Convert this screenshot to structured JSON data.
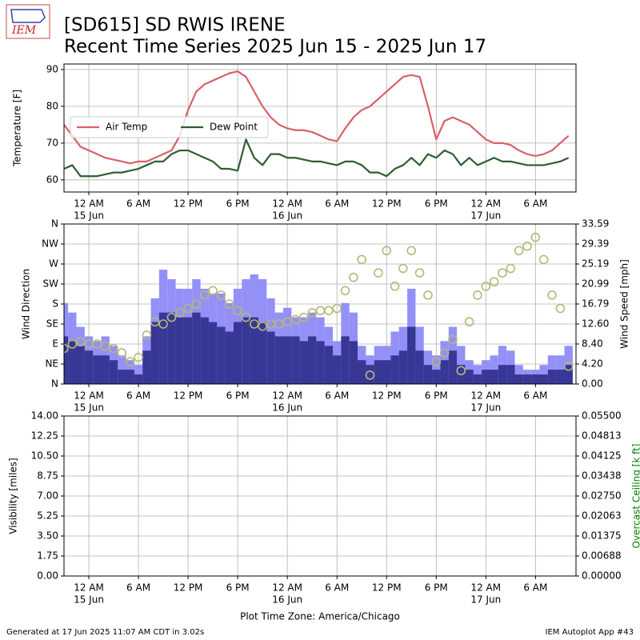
{
  "header": {
    "logo": "IEM",
    "title": "[SD615] SD RWIS IRENE",
    "subtitle": "Recent Time Series 2025 Jun 15 - 2025 Jun 17"
  },
  "chart_data": [
    {
      "type": "line",
      "ylabel": "Temperature [F]",
      "legend": "center left",
      "grid": true,
      "xlim": [
        "2025-06-14 21:00",
        "2025-06-17 10:54"
      ],
      "xticks": [
        {
          "value": "2025-06-15 00:00",
          "label": "12 AM",
          "date": "15 Jun"
        },
        {
          "value": "2025-06-15 06:00",
          "label": "6 AM"
        },
        {
          "value": "2025-06-15 12:00",
          "label": "12 PM"
        },
        {
          "value": "2025-06-15 18:00",
          "label": "6 PM"
        },
        {
          "value": "2025-06-16 00:00",
          "label": "12 AM",
          "date": "16 Jun"
        },
        {
          "value": "2025-06-16 06:00",
          "label": "6 AM"
        },
        {
          "value": "2025-06-16 12:00",
          "label": "12 PM"
        },
        {
          "value": "2025-06-16 18:00",
          "label": "6 PM"
        },
        {
          "value": "2025-06-17 00:00",
          "label": "12 AM",
          "date": "17 Jun"
        },
        {
          "value": "2025-06-17 06:00",
          "label": "6 AM"
        }
      ],
      "ylim": [
        56.7,
        91.5
      ],
      "yticks": [
        60,
        70,
        80,
        90
      ],
      "x": [
        "2025-06-14 21:00",
        "2025-06-14 22:00",
        "2025-06-14 23:00",
        "2025-06-15 00:00",
        "2025-06-15 01:00",
        "2025-06-15 02:00",
        "2025-06-15 03:00",
        "2025-06-15 04:00",
        "2025-06-15 05:00",
        "2025-06-15 06:00",
        "2025-06-15 07:00",
        "2025-06-15 08:00",
        "2025-06-15 09:00",
        "2025-06-15 10:00",
        "2025-06-15 11:00",
        "2025-06-15 12:00",
        "2025-06-15 13:00",
        "2025-06-15 14:00",
        "2025-06-15 15:00",
        "2025-06-15 16:00",
        "2025-06-15 17:00",
        "2025-06-15 18:00",
        "2025-06-15 19:00",
        "2025-06-15 20:00",
        "2025-06-15 21:00",
        "2025-06-15 22:00",
        "2025-06-15 23:00",
        "2025-06-16 00:00",
        "2025-06-16 01:00",
        "2025-06-16 02:00",
        "2025-06-16 03:00",
        "2025-06-16 04:00",
        "2025-06-16 05:00",
        "2025-06-16 06:00",
        "2025-06-16 07:00",
        "2025-06-16 08:00",
        "2025-06-16 09:00",
        "2025-06-16 10:00",
        "2025-06-16 11:00",
        "2025-06-16 12:00",
        "2025-06-16 13:00",
        "2025-06-16 14:00",
        "2025-06-16 15:00",
        "2025-06-16 16:00",
        "2025-06-16 17:00",
        "2025-06-16 18:00",
        "2025-06-16 19:00",
        "2025-06-16 20:00",
        "2025-06-16 21:00",
        "2025-06-16 22:00",
        "2025-06-16 23:00",
        "2025-06-17 00:00",
        "2025-06-17 01:00",
        "2025-06-17 02:00",
        "2025-06-17 03:00",
        "2025-06-17 04:00",
        "2025-06-17 05:00",
        "2025-06-17 06:00",
        "2025-06-17 07:00",
        "2025-06-17 08:00",
        "2025-06-17 09:00",
        "2025-06-17 10:00"
      ],
      "series": [
        {
          "name": "Air Temp",
          "color": "#d9606a",
          "values": [
            75,
            72,
            69,
            68,
            67,
            66,
            65.5,
            65,
            64.5,
            65,
            65,
            66,
            67,
            68,
            72,
            79,
            84,
            86,
            87,
            88,
            89,
            89.5,
            88,
            84,
            80,
            77,
            75,
            74,
            73.5,
            73.5,
            73,
            72,
            71,
            70.5,
            74,
            77,
            79,
            80,
            82,
            84,
            86,
            88,
            88.5,
            88,
            80,
            71,
            76,
            77,
            76,
            75,
            73,
            71,
            70,
            70,
            69.5,
            68,
            67,
            66.5,
            67,
            68,
            70,
            72
          ]
        },
        {
          "name": "Dew Point",
          "color": "#2e5e32",
          "values": [
            63,
            64,
            61,
            61,
            61,
            61.5,
            62,
            62,
            62.5,
            63,
            64,
            65,
            65,
            67,
            68,
            68,
            67,
            66,
            65,
            63,
            63,
            62.5,
            71,
            66,
            64,
            67,
            67,
            66,
            66,
            65.5,
            65,
            65,
            64.5,
            64,
            65,
            65,
            64,
            62,
            62,
            61,
            63,
            64,
            66,
            64,
            67,
            66,
            68,
            67,
            64,
            66,
            64,
            65,
            66,
            65,
            65,
            64.5,
            64,
            64,
            64,
            64.5,
            65,
            66
          ]
        }
      ]
    },
    {
      "type": "bar",
      "ylabel": "Wind Direction",
      "y2label": "Wind Speed [mph]",
      "grid": true,
      "xlim": [
        "2025-06-14 21:00",
        "2025-06-17 10:54"
      ],
      "xticks": [
        {
          "value": "2025-06-15 00:00",
          "label": "12 AM",
          "date": "15 Jun"
        },
        {
          "value": "2025-06-15 06:00",
          "label": "6 AM"
        },
        {
          "value": "2025-06-15 12:00",
          "label": "12 PM"
        },
        {
          "value": "2025-06-15 18:00",
          "label": "6 PM"
        },
        {
          "value": "2025-06-16 00:00",
          "label": "12 AM",
          "date": "16 Jun"
        },
        {
          "value": "2025-06-16 06:00",
          "label": "6 AM"
        },
        {
          "value": "2025-06-16 12:00",
          "label": "12 PM"
        },
        {
          "value": "2025-06-16 18:00",
          "label": "6 PM"
        },
        {
          "value": "2025-06-17 00:00",
          "label": "12 AM",
          "date": "17 Jun"
        },
        {
          "value": "2025-06-17 06:00",
          "label": "6 AM"
        }
      ],
      "ylim": [
        0,
        360
      ],
      "yticks": [
        {
          "value": 0,
          "label": "N"
        },
        {
          "value": 45,
          "label": "NE"
        },
        {
          "value": 90,
          "label": "E"
        },
        {
          "value": 135,
          "label": "SE"
        },
        {
          "value": 180,
          "label": "S"
        },
        {
          "value": 225,
          "label": "SW"
        },
        {
          "value": 270,
          "label": "W"
        },
        {
          "value": 315,
          "label": "NW"
        },
        {
          "value": 360,
          "label": "N"
        }
      ],
      "y2lim": [
        0,
        33.59
      ],
      "y2ticks": [
        {
          "value": 0,
          "label": "0.00"
        },
        {
          "value": 4.199,
          "label": "4.20"
        },
        {
          "value": 8.398,
          "label": "8.40"
        },
        {
          "value": 12.596,
          "label": "12.60"
        },
        {
          "value": 16.795,
          "label": "16.79"
        },
        {
          "value": 20.994,
          "label": "20.99"
        },
        {
          "value": 25.193,
          "label": "25.19"
        },
        {
          "value": 29.391,
          "label": "29.39"
        },
        {
          "value": 33.59,
          "label": "33.59"
        }
      ],
      "x": [
        "2025-06-14 21:00",
        "2025-06-14 22:00",
        "2025-06-14 23:00",
        "2025-06-15 00:00",
        "2025-06-15 01:00",
        "2025-06-15 02:00",
        "2025-06-15 03:00",
        "2025-06-15 04:00",
        "2025-06-15 05:00",
        "2025-06-15 06:00",
        "2025-06-15 07:00",
        "2025-06-15 08:00",
        "2025-06-15 09:00",
        "2025-06-15 10:00",
        "2025-06-15 11:00",
        "2025-06-15 12:00",
        "2025-06-15 13:00",
        "2025-06-15 14:00",
        "2025-06-15 15:00",
        "2025-06-15 16:00",
        "2025-06-15 17:00",
        "2025-06-15 18:00",
        "2025-06-15 19:00",
        "2025-06-15 20:00",
        "2025-06-15 21:00",
        "2025-06-15 22:00",
        "2025-06-15 23:00",
        "2025-06-16 00:00",
        "2025-06-16 01:00",
        "2025-06-16 02:00",
        "2025-06-16 03:00",
        "2025-06-16 04:00",
        "2025-06-16 05:00",
        "2025-06-16 06:00",
        "2025-06-16 07:00",
        "2025-06-16 08:00",
        "2025-06-16 09:00",
        "2025-06-16 10:00",
        "2025-06-16 11:00",
        "2025-06-16 12:00",
        "2025-06-16 13:00",
        "2025-06-16 14:00",
        "2025-06-16 15:00",
        "2025-06-16 16:00",
        "2025-06-16 17:00",
        "2025-06-16 18:00",
        "2025-06-16 19:00",
        "2025-06-16 20:00",
        "2025-06-16 21:00",
        "2025-06-16 22:00",
        "2025-06-16 23:00",
        "2025-06-17 00:00",
        "2025-06-17 01:00",
        "2025-06-17 02:00",
        "2025-06-17 03:00",
        "2025-06-17 04:00",
        "2025-06-17 05:00",
        "2025-06-17 06:00",
        "2025-06-17 07:00",
        "2025-06-17 08:00",
        "2025-06-17 09:00",
        "2025-06-17 10:00"
      ],
      "series": [
        {
          "color": "#9390f7",
          "axis": "y2",
          "values": [
            17,
            15,
            12,
            10,
            9,
            10,
            8,
            6,
            5,
            4,
            10,
            18,
            24,
            22,
            20,
            20,
            22,
            20,
            19,
            19,
            17,
            20,
            22,
            23,
            22,
            18,
            15,
            16,
            14,
            14,
            15,
            14,
            12,
            9,
            17,
            15,
            8,
            6,
            8,
            8,
            11,
            12,
            20,
            12,
            7,
            6,
            9,
            12,
            8,
            5,
            4,
            5,
            6,
            8,
            7,
            4,
            3,
            3,
            4,
            6,
            6,
            8
          ]
        },
        {
          "color": "#373796",
          "axis": "y2",
          "values": [
            10,
            9,
            8,
            7,
            6,
            6,
            5,
            3,
            3,
            2,
            7,
            13,
            15,
            15,
            14,
            14,
            15,
            14,
            13,
            12,
            11,
            13,
            14,
            14,
            13,
            11,
            10,
            10,
            10,
            9,
            10,
            9,
            8,
            6,
            10,
            9,
            5,
            4,
            5,
            5,
            6,
            7,
            12,
            7,
            4,
            3,
            5,
            7,
            4,
            3,
            2,
            3,
            3,
            4,
            4,
            2,
            2,
            2,
            2,
            3,
            3,
            4
          ]
        },
        {
          "color": "#b5b878",
          "kind": "scatter",
          "values": [
            80,
            90,
            95,
            90,
            90,
            85,
            80,
            70,
            50,
            60,
            110,
            140,
            135,
            150,
            160,
            170,
            180,
            200,
            210,
            200,
            180,
            165,
            150,
            135,
            130,
            135,
            135,
            140,
            145,
            150,
            160,
            165,
            165,
            170,
            210,
            240,
            280,
            20,
            250,
            300,
            220,
            260,
            300,
            250,
            200,
            50,
            70,
            100,
            30,
            140,
            200,
            220,
            230,
            250,
            260,
            300,
            310,
            330,
            280,
            200,
            170,
            40
          ]
        }
      ]
    },
    {
      "type": "line",
      "ylabel": "Visibility [miles]",
      "y2label": "Overcast Ceiling [k ft]",
      "y2color": "#008000",
      "grid": true,
      "xlabel": "Plot Time Zone: America/Chicago",
      "xlim": [
        "2025-06-14 21:00",
        "2025-06-17 10:54"
      ],
      "xticks": [
        {
          "value": "2025-06-15 00:00",
          "label": "12 AM",
          "date": "15 Jun"
        },
        {
          "value": "2025-06-15 06:00",
          "label": "6 AM"
        },
        {
          "value": "2025-06-15 12:00",
          "label": "12 PM"
        },
        {
          "value": "2025-06-15 18:00",
          "label": "6 PM"
        },
        {
          "value": "2025-06-16 00:00",
          "label": "12 AM",
          "date": "16 Jun"
        },
        {
          "value": "2025-06-16 06:00",
          "label": "6 AM"
        },
        {
          "value": "2025-06-16 12:00",
          "label": "12 PM"
        },
        {
          "value": "2025-06-16 18:00",
          "label": "6 PM"
        },
        {
          "value": "2025-06-17 00:00",
          "label": "12 AM",
          "date": "17 Jun"
        },
        {
          "value": "2025-06-17 06:00",
          "label": "6 AM"
        }
      ],
      "ylim": [
        0,
        14
      ],
      "yticks": [
        {
          "value": 0,
          "label": "0.00"
        },
        1.75,
        {
          "value": 3.5,
          "label": "3.50"
        },
        5.25,
        {
          "value": 7,
          "label": "7.00"
        },
        8.75,
        {
          "value": 10.5,
          "label": "10.50"
        },
        12.25,
        {
          "value": 14,
          "label": "14.00"
        }
      ],
      "y2lim": [
        0,
        0.055
      ],
      "y2ticks": [
        {
          "value": 0,
          "label": "0.00000"
        },
        {
          "value": 0.006875,
          "label": "0.00688"
        },
        0.01375,
        {
          "value": 0.020625,
          "label": "0.02063"
        },
        {
          "value": 0.0275,
          "label": "0.02750"
        },
        {
          "value": 0.034375,
          "label": "0.03438"
        },
        0.04125,
        {
          "value": 0.048125,
          "label": "0.04813"
        },
        {
          "value": 0.055,
          "label": "0.05500"
        }
      ],
      "series": []
    }
  ],
  "footer": {
    "left": "Generated at 17 Jun 2025 11:07 AM CDT in 3.02s",
    "right": "IEM Autoplot App #43"
  }
}
